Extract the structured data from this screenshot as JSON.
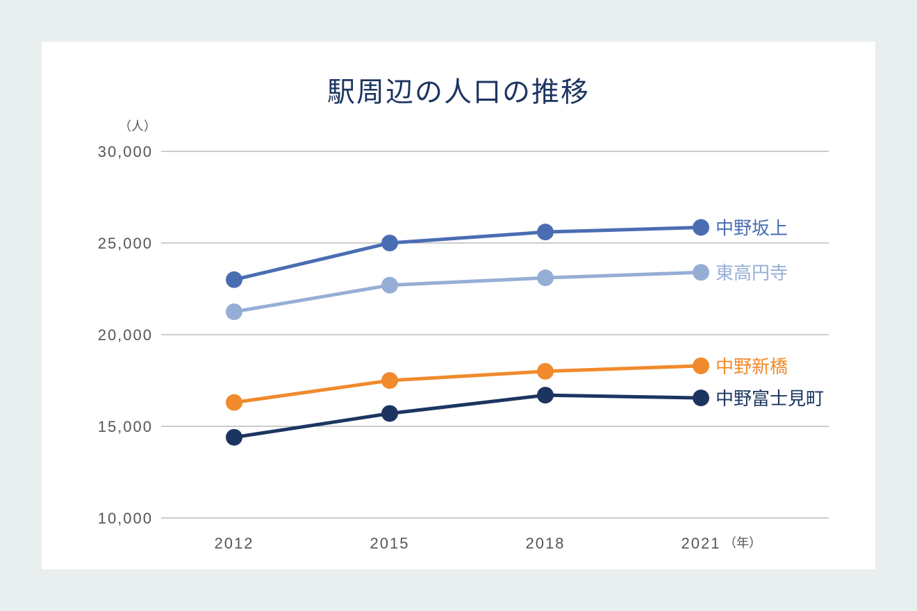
{
  "chart_data": {
    "type": "line",
    "title": "駅周辺の人口の推移",
    "ylabel": "（人）",
    "xlabel": "（年）",
    "categories": [
      "2012",
      "2015",
      "2018",
      "2021"
    ],
    "ylim": [
      10000,
      30000
    ],
    "yticks": [
      "10,000",
      "15,000",
      "20,000",
      "25,000",
      "30,000"
    ],
    "ytick_values": [
      10000,
      15000,
      20000,
      25000,
      30000
    ],
    "grid": true,
    "legend": "end-of-line labels",
    "series": [
      {
        "name": "中野坂上",
        "color": "#4a6db2",
        "values": [
          23000,
          25000,
          25600,
          25850
        ]
      },
      {
        "name": "東高円寺",
        "color": "#96aed6",
        "values": [
          21250,
          22700,
          23100,
          23400
        ]
      },
      {
        "name": "中野新橋",
        "color": "#f08a2c",
        "values": [
          16300,
          17500,
          18000,
          18300
        ]
      },
      {
        "name": "中野富士見町",
        "color": "#1c3560",
        "values": [
          14400,
          15700,
          16700,
          16550
        ]
      }
    ]
  }
}
